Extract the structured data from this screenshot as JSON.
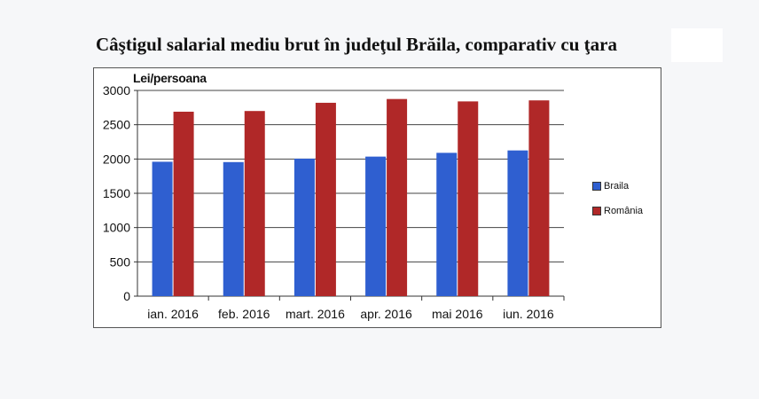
{
  "title": "Câştigul salarial mediu brut în judeţul Brăila, comparativ cu ţara",
  "chart_data": {
    "type": "bar",
    "ylabel": "Lei/persoana",
    "ylim": [
      0,
      3000
    ],
    "yticks": [
      0,
      500,
      1000,
      1500,
      2000,
      2500,
      3000
    ],
    "categories": [
      "ian. 2016",
      "feb. 2016",
      "mart. 2016",
      "apr. 2016",
      "mai 2016",
      "iun. 2016"
    ],
    "series": [
      {
        "name": "Braila",
        "color": "#2f5fd0",
        "values": [
          1960,
          1955,
          2005,
          2035,
          2090,
          2125
        ]
      },
      {
        "name": "România",
        "color": "#b02828",
        "values": [
          2690,
          2700,
          2820,
          2875,
          2840,
          2855
        ]
      }
    ],
    "grid": true,
    "legend_position": "right"
  }
}
